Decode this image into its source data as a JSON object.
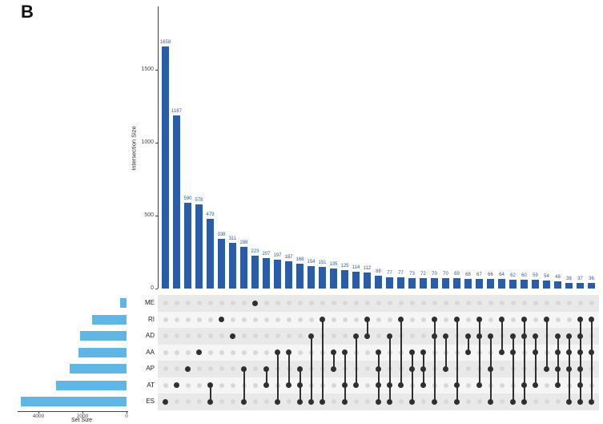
{
  "panel_label": "B",
  "colors": {
    "intersection_bar": "#2a5ca8",
    "set_bar": "#5fb7e8",
    "dot_inactive": "#d8d8d8",
    "dot_active": "#2f2f2f",
    "band_dark": "#e9e9e9",
    "band_light": "#f5f5f5"
  },
  "chart_data": {
    "type": "bar",
    "subtype": "upset-plot",
    "intersection_axis": {
      "label": "Intersection Size",
      "ticks": [
        0,
        500,
        1000,
        1500
      ],
      "max": 1700
    },
    "set_axis": {
      "label": "Set Size",
      "ticks": [
        4000,
        2000,
        0
      ],
      "max": 5000
    },
    "sets": [
      {
        "name": "ME",
        "size": 290
      },
      {
        "name": "RI",
        "size": 1550
      },
      {
        "name": "AD",
        "size": 2100
      },
      {
        "name": "AA",
        "size": 2200
      },
      {
        "name": "AP",
        "size": 2600
      },
      {
        "name": "AT",
        "size": 3200
      },
      {
        "name": "ES",
        "size": 4800
      }
    ],
    "intersections": [
      {
        "value": 1658,
        "members": [
          "ES"
        ]
      },
      {
        "value": 1187,
        "members": [
          "AT"
        ]
      },
      {
        "value": 590,
        "members": [
          "AP"
        ]
      },
      {
        "value": 578,
        "members": [
          "AA"
        ]
      },
      {
        "value": 479,
        "members": [
          "AT",
          "ES"
        ]
      },
      {
        "value": 338,
        "members": [
          "RI"
        ]
      },
      {
        "value": 311,
        "members": [
          "AD"
        ]
      },
      {
        "value": 288,
        "members": [
          "AP",
          "ES"
        ]
      },
      {
        "value": 223,
        "members": [
          "ME"
        ]
      },
      {
        "value": 207,
        "members": [
          "AP",
          "AT"
        ]
      },
      {
        "value": 197,
        "members": [
          "AA",
          "ES"
        ]
      },
      {
        "value": 187,
        "members": [
          "AA",
          "AT"
        ]
      },
      {
        "value": 168,
        "members": [
          "AP",
          "AT",
          "ES"
        ]
      },
      {
        "value": 154,
        "members": [
          "AD",
          "ES"
        ]
      },
      {
        "value": 151,
        "members": [
          "RI",
          "ES"
        ]
      },
      {
        "value": 135,
        "members": [
          "AA",
          "AP"
        ]
      },
      {
        "value": 125,
        "members": [
          "AA",
          "AT",
          "ES"
        ]
      },
      {
        "value": 114,
        "members": [
          "AD",
          "AT"
        ]
      },
      {
        "value": 112,
        "members": [
          "RI",
          "AD"
        ]
      },
      {
        "value": 88,
        "members": [
          "AA",
          "AP",
          "AT",
          "ES"
        ]
      },
      {
        "value": 77,
        "members": [
          "AD",
          "AT",
          "ES"
        ]
      },
      {
        "value": 77,
        "members": [
          "RI",
          "AT"
        ]
      },
      {
        "value": 73,
        "members": [
          "AA",
          "AP",
          "ES"
        ]
      },
      {
        "value": 72,
        "members": [
          "AA",
          "AP",
          "AT"
        ]
      },
      {
        "value": 70,
        "members": [
          "RI",
          "AD",
          "ES"
        ]
      },
      {
        "value": 70,
        "members": [
          "AD",
          "AP"
        ]
      },
      {
        "value": 69,
        "members": [
          "RI",
          "AT",
          "ES"
        ]
      },
      {
        "value": 68,
        "members": [
          "AD",
          "AA"
        ]
      },
      {
        "value": 67,
        "members": [
          "RI",
          "AD",
          "AT"
        ]
      },
      {
        "value": 66,
        "members": [
          "AD",
          "AP",
          "ES"
        ]
      },
      {
        "value": 64,
        "members": [
          "RI",
          "AA"
        ]
      },
      {
        "value": 62,
        "members": [
          "AD",
          "AA",
          "ES"
        ]
      },
      {
        "value": 60,
        "members": [
          "RI",
          "AD",
          "AT",
          "ES"
        ]
      },
      {
        "value": 59,
        "members": [
          "AD",
          "AA",
          "AT"
        ]
      },
      {
        "value": 54,
        "members": [
          "RI",
          "AP"
        ]
      },
      {
        "value": 48,
        "members": [
          "AD",
          "AA",
          "AP",
          "AT"
        ]
      },
      {
        "value": 38,
        "members": [
          "AD",
          "AA",
          "AP",
          "ES"
        ]
      },
      {
        "value": 37,
        "members": [
          "RI",
          "AD",
          "AA",
          "AP",
          "AT",
          "ES"
        ]
      },
      {
        "value": 36,
        "members": [
          "RI",
          "AA",
          "ES"
        ]
      }
    ]
  }
}
